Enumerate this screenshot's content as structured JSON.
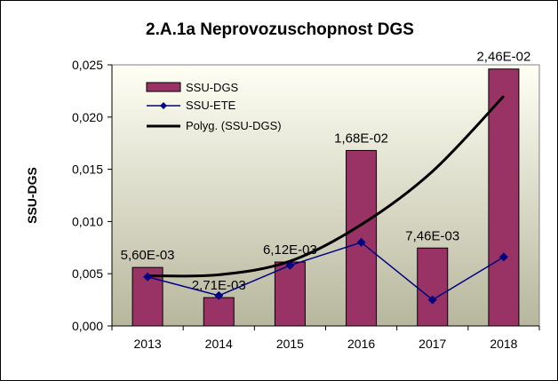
{
  "chart_data": {
    "type": "bar",
    "title": "2.A.1a Neprovozuschopnost DGS",
    "xlabel": "",
    "ylabel": "SSU-DGS",
    "categories": [
      "2013",
      "2014",
      "2015",
      "2016",
      "2017",
      "2018"
    ],
    "ylim": [
      0,
      0.025
    ],
    "yticks": [
      0,
      0.005,
      0.01,
      0.015,
      0.02,
      0.025
    ],
    "ytick_labels": [
      "0,000",
      "0,005",
      "0,010",
      "0,015",
      "0,020",
      "0,025"
    ],
    "grid": false,
    "legend_position": "top-left",
    "series": [
      {
        "name": "SSU-DGS",
        "kind": "bar",
        "color": "#993366",
        "values": [
          0.0056,
          0.00271,
          0.00612,
          0.0168,
          0.00746,
          0.0246
        ],
        "data_labels": [
          "5,60E-03",
          "2,71E-03",
          "6,12E-03",
          "1,68E-02",
          "7,46E-03",
          "2,46E-02"
        ]
      },
      {
        "name": "SSU-ETE",
        "kind": "line",
        "marker": "diamond",
        "color": "#000080",
        "values": [
          0.0047,
          0.0029,
          0.0058,
          0.008,
          0.0025,
          0.0066
        ]
      },
      {
        "name": "Polyg. (SSU-DGS)",
        "kind": "trendline",
        "color": "#000000",
        "values": [
          0.0048,
          0.0049,
          0.0062,
          0.0097,
          0.0148,
          0.022
        ]
      }
    ],
    "colors": {
      "plot_background_top": "#fffff4",
      "plot_background_bottom": "#b7b79e"
    }
  }
}
